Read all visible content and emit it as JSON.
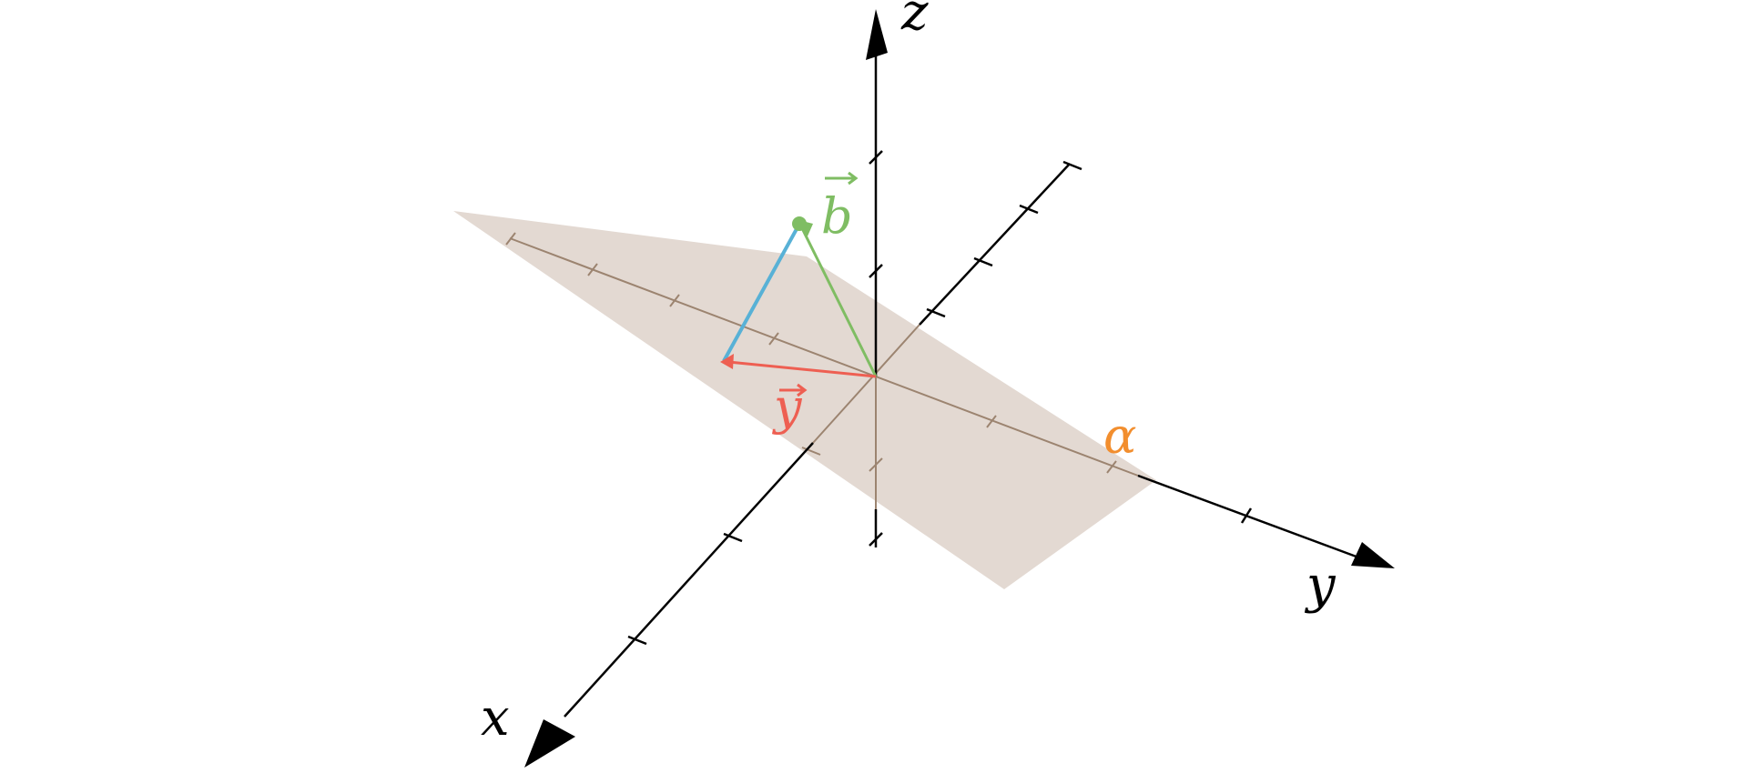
{
  "axes": {
    "x": {
      "label": "x"
    },
    "y": {
      "label": "y"
    },
    "z": {
      "label": "z"
    }
  },
  "plane": {
    "label": "α",
    "fill": "#e3d9d2",
    "line_color": "#9c8470"
  },
  "vectors": {
    "y": {
      "label": "y",
      "color": "#ee5f52"
    },
    "b": {
      "label": "b",
      "color": "#7fbd63"
    }
  },
  "projection_segment": {
    "color": "#58b1d6"
  },
  "colors": {
    "axis": "#000000",
    "alpha_label": "#f28e2e"
  }
}
